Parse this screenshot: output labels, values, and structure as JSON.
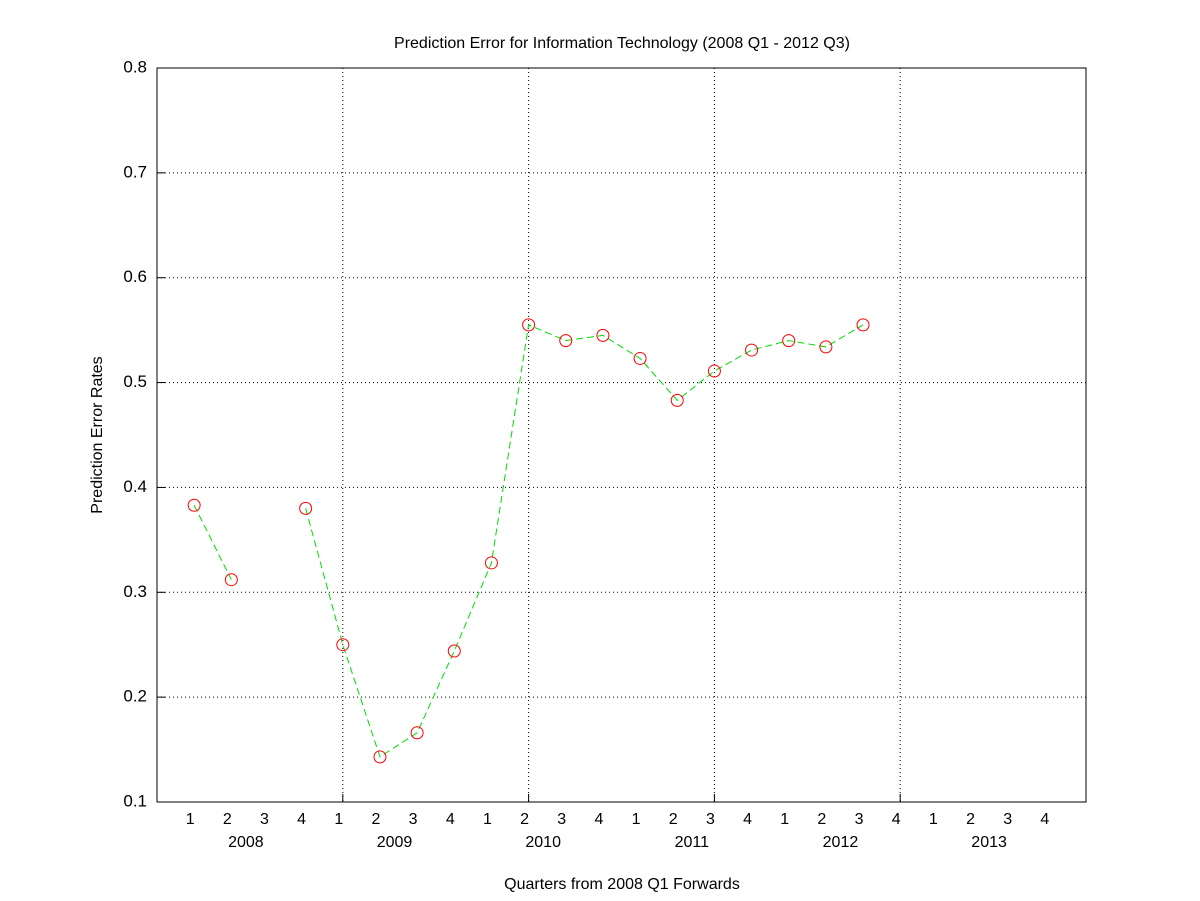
{
  "chart_data": {
    "type": "line",
    "title": "Prediction Error for Information Technology (2008 Q1 - 2012 Q3)",
    "xlabel": "Quarters from 2008 Q1 Forwards",
    "ylabel": "Prediction Error Rates",
    "quarter_labels": [
      "1",
      "2",
      "3",
      "4",
      "1",
      "2",
      "3",
      "4",
      "1",
      "2",
      "3",
      "4",
      "1",
      "2",
      "3",
      "4",
      "1",
      "2",
      "3",
      "4",
      "1",
      "2",
      "3",
      "4"
    ],
    "year_labels": [
      "2008",
      "2009",
      "2010",
      "2011",
      "2012",
      "2013"
    ],
    "x": [
      1,
      2,
      3,
      4,
      5,
      6,
      7,
      8,
      9,
      10,
      11,
      12,
      13,
      14,
      15,
      16,
      17,
      18,
      19
    ],
    "series": [
      {
        "color": "#00dd00",
        "marker_color": "#ff0000",
        "values": [
          0.383,
          0.312,
          null,
          0.38,
          0.25,
          0.143,
          0.166,
          0.244,
          0.328,
          0.555,
          0.54,
          0.545,
          0.523,
          0.483,
          0.511,
          0.531,
          0.54,
          0.534,
          0.555
        ]
      }
    ],
    "xlim": [
      0,
      25
    ],
    "xticks": [
      5,
      10,
      15,
      20
    ],
    "ylim": [
      0.1,
      0.8
    ],
    "yticks": [
      0.1,
      0.2,
      0.3,
      0.4,
      0.5,
      0.6,
      0.7,
      0.8
    ],
    "grid": true
  }
}
